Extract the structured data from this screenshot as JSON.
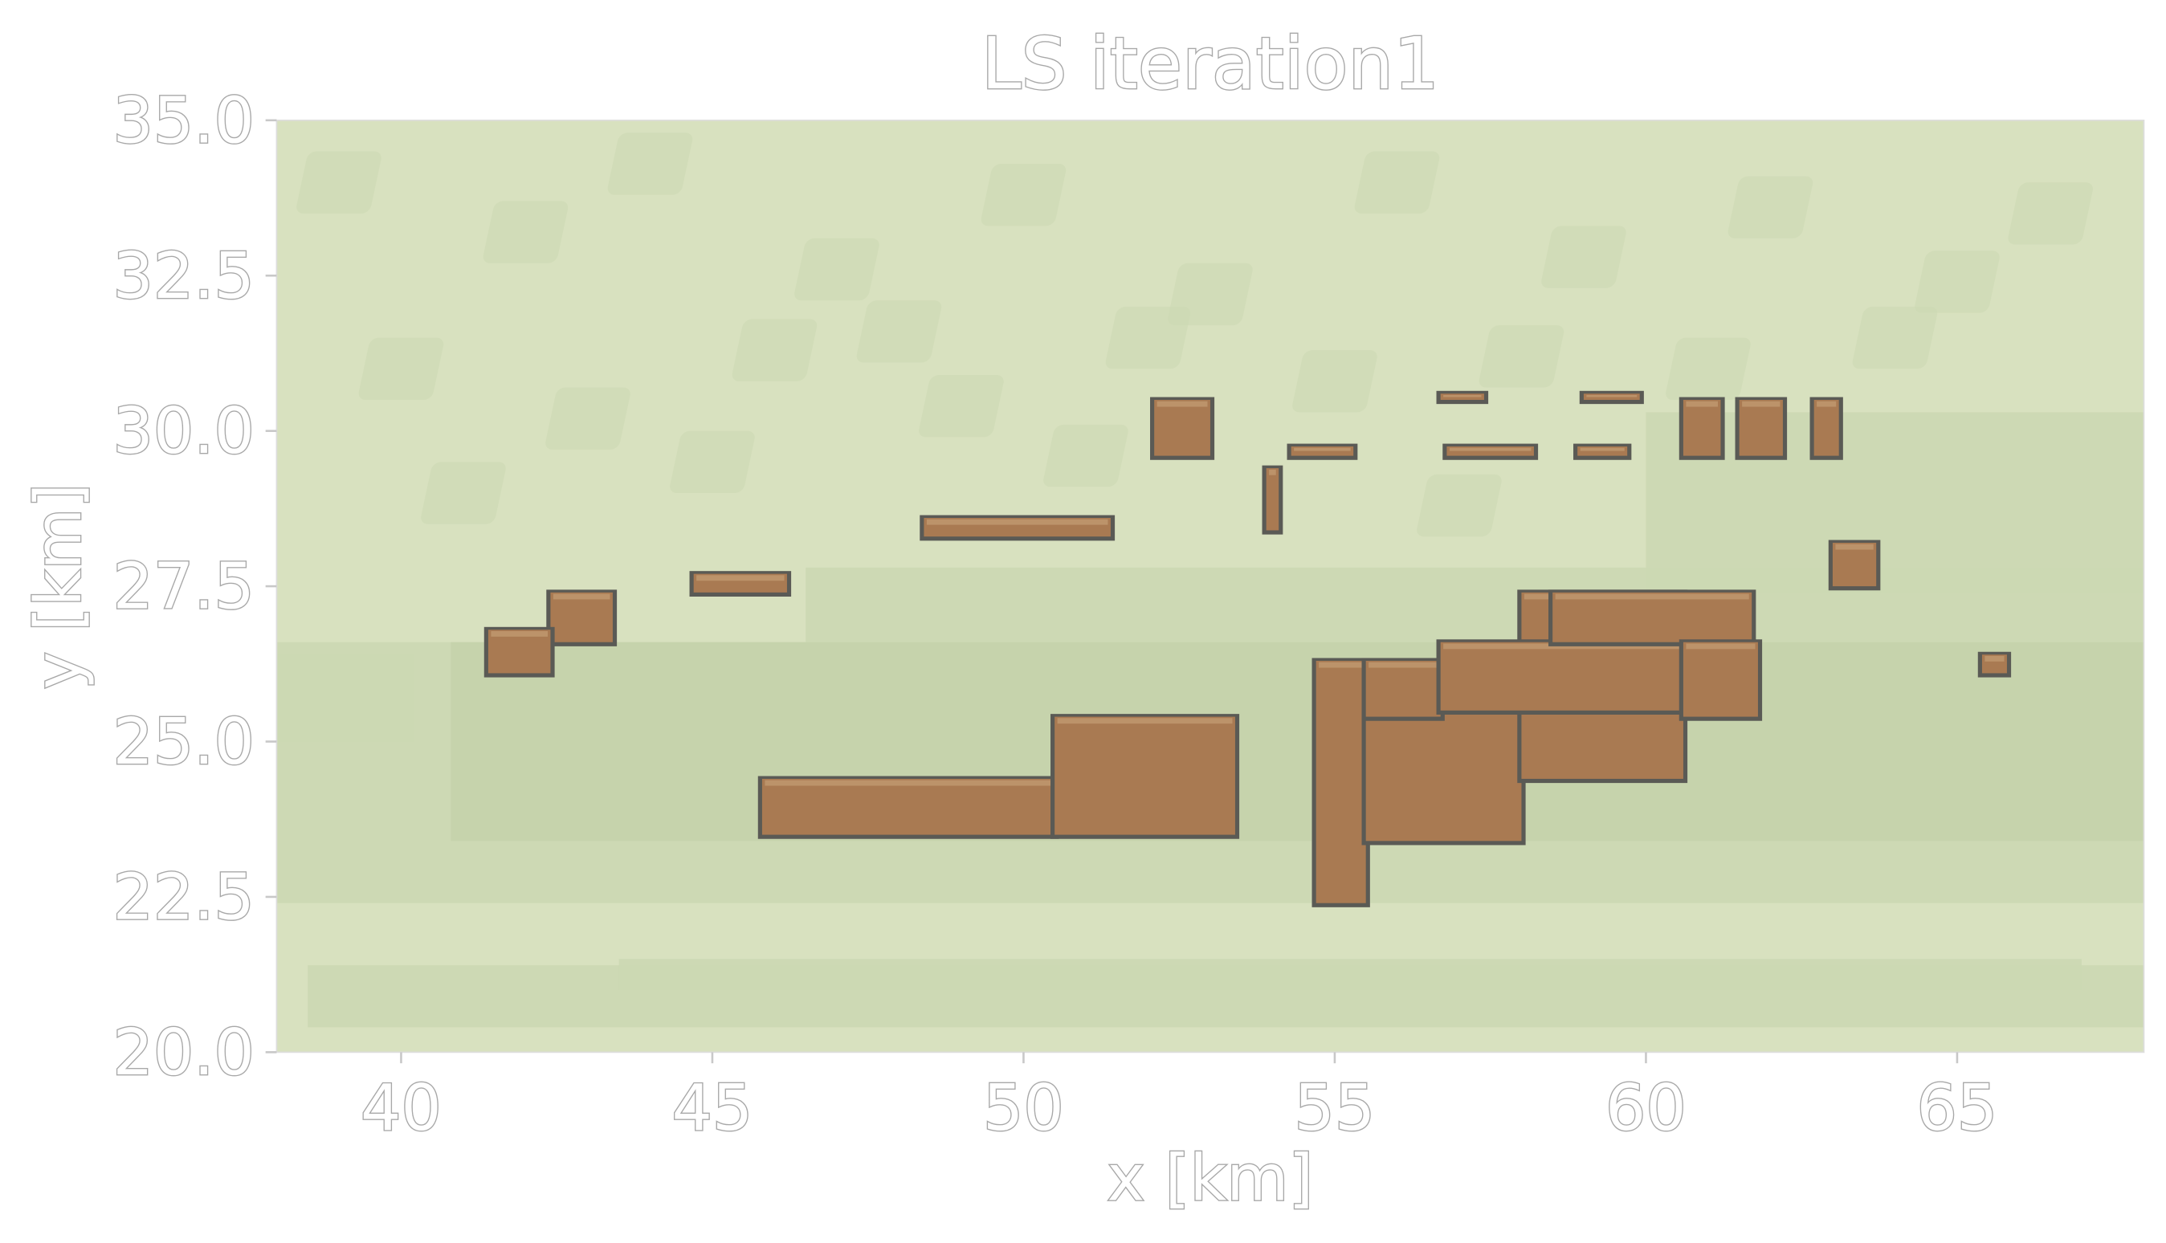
{
  "chart_data": {
    "type": "heatmap",
    "title": "LS iteration1",
    "xlabel": "x [km]",
    "ylabel": "y [km]",
    "xlim": [
      38,
      68
    ],
    "ylim": [
      20,
      35
    ],
    "xticks": [
      40,
      45,
      50,
      55,
      60,
      65
    ],
    "yticks": [
      20.0,
      22.5,
      25.0,
      27.5,
      30.0,
      32.5,
      35.0
    ],
    "xtick_labels": [
      "40",
      "45",
      "50",
      "55",
      "60",
      "65"
    ],
    "ytick_labels": [
      "20.0",
      "22.5",
      "25.0",
      "27.5",
      "30.0",
      "32.5",
      "35.0"
    ],
    "grid": false,
    "colors": {
      "background_light": "#d8e1bf",
      "background_mid": "#ccd8b3",
      "background_dark": "#c5d1ab",
      "body_fill": "#a97a52",
      "body_fill_light": "#c19a70",
      "body_edge": "#5a5a55"
    },
    "bodies": [
      {
        "x": [
          45.8,
          50.5
        ],
        "y": [
          23.5,
          24.4
        ]
      },
      {
        "x": [
          50.5,
          53.4
        ],
        "y": [
          23.5,
          25.4
        ]
      },
      {
        "x": [
          54.7,
          55.5
        ],
        "y": [
          22.4,
          26.3
        ]
      },
      {
        "x": [
          55.5,
          58.0
        ],
        "y": [
          23.4,
          26.3
        ]
      },
      {
        "x": [
          55.5,
          56.7
        ],
        "y": [
          25.4,
          26.3
        ]
      },
      {
        "x": [
          58.0,
          60.6
        ],
        "y": [
          24.4,
          27.4
        ]
      },
      {
        "x": [
          56.7,
          61.7
        ],
        "y": [
          25.5,
          26.6
        ]
      },
      {
        "x": [
          58.5,
          61.7
        ],
        "y": [
          26.6,
          27.4
        ]
      },
      {
        "x": [
          60.6,
          61.8
        ],
        "y": [
          25.4,
          26.6
        ]
      },
      {
        "x": [
          42.4,
          43.4
        ],
        "y": [
          26.6,
          27.4
        ]
      },
      {
        "x": [
          41.4,
          42.4
        ],
        "y": [
          26.1,
          26.8
        ]
      },
      {
        "x": [
          44.7,
          46.2
        ],
        "y": [
          27.4,
          27.7
        ]
      },
      {
        "x": [
          48.4,
          51.4
        ],
        "y": [
          28.3,
          28.6
        ]
      },
      {
        "x": [
          52.1,
          53.0
        ],
        "y": [
          29.6,
          30.5
        ]
      },
      {
        "x": [
          60.6,
          61.2
        ],
        "y": [
          29.6,
          30.5
        ]
      },
      {
        "x": [
          61.5,
          62.2
        ],
        "y": [
          29.6,
          30.5
        ]
      },
      {
        "x": [
          62.7,
          63.1
        ],
        "y": [
          29.6,
          30.5
        ]
      },
      {
        "x": [
          53.9,
          54.1
        ],
        "y": [
          28.4,
          29.4
        ]
      },
      {
        "x": [
          54.3,
          55.3
        ],
        "y": [
          29.6,
          29.75
        ]
      },
      {
        "x": [
          56.8,
          58.2
        ],
        "y": [
          29.6,
          29.75
        ]
      },
      {
        "x": [
          58.9,
          59.7
        ],
        "y": [
          29.6,
          29.75
        ]
      },
      {
        "x": [
          56.7,
          57.4
        ],
        "y": [
          30.5,
          30.6
        ]
      },
      {
        "x": [
          59.0,
          59.9
        ],
        "y": [
          30.5,
          30.6
        ]
      },
      {
        "x": [
          63.0,
          63.7
        ],
        "y": [
          27.5,
          28.2
        ]
      },
      {
        "x": [
          65.4,
          65.8
        ],
        "y": [
          26.1,
          26.4
        ]
      }
    ]
  }
}
